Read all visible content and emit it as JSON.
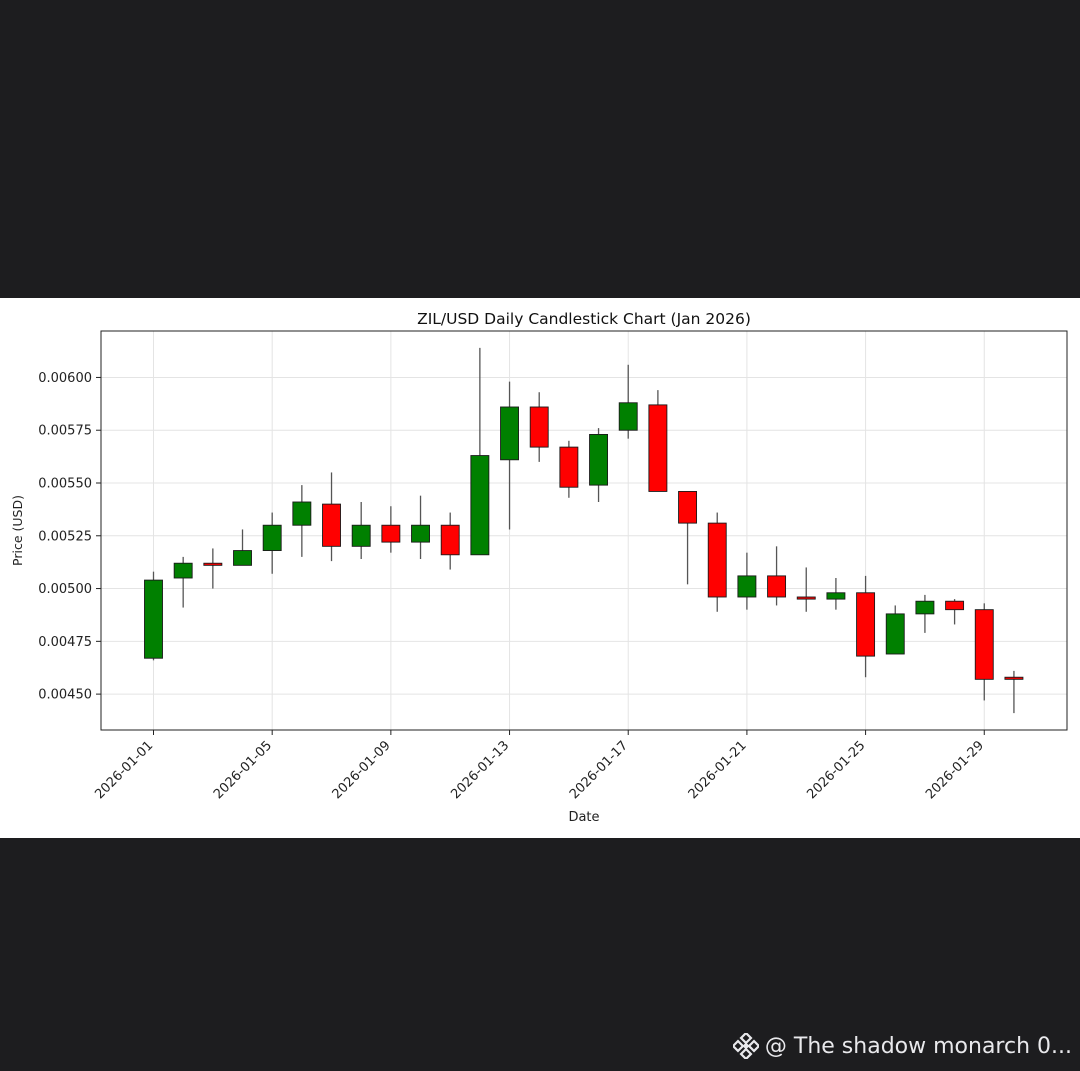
{
  "watermark": {
    "text": "@ The shadow monarch 0...",
    "icon": "binance-logo-icon"
  },
  "chart_data": {
    "type": "candlestick",
    "title": "ZIL/USD Daily Candlestick Chart (Jan 2026)",
    "xlabel": "Date",
    "ylabel": "Price (USD)",
    "ylim": [
      0.00433,
      0.00622
    ],
    "yticks": [
      "0.00450",
      "0.00475",
      "0.00500",
      "0.00525",
      "0.00550",
      "0.00575",
      "0.00600"
    ],
    "xticks": [
      "2026-01-01",
      "2026-01-05",
      "2026-01-09",
      "2026-01-13",
      "2026-01-17",
      "2026-01-21",
      "2026-01-25",
      "2026-01-29"
    ],
    "grid": true,
    "up_color": "#008000",
    "down_color": "#ff0000",
    "candles": [
      {
        "date": "2026-01-01",
        "open": 0.00467,
        "high": 0.00508,
        "low": 0.00466,
        "close": 0.00504
      },
      {
        "date": "2026-01-02",
        "open": 0.00505,
        "high": 0.00515,
        "low": 0.00491,
        "close": 0.00512
      },
      {
        "date": "2026-01-03",
        "open": 0.00512,
        "high": 0.00519,
        "low": 0.005,
        "close": 0.00511
      },
      {
        "date": "2026-01-04",
        "open": 0.00511,
        "high": 0.00528,
        "low": 0.00511,
        "close": 0.00518
      },
      {
        "date": "2026-01-05",
        "open": 0.00518,
        "high": 0.00536,
        "low": 0.00507,
        "close": 0.0053
      },
      {
        "date": "2026-01-06",
        "open": 0.0053,
        "high": 0.00549,
        "low": 0.00515,
        "close": 0.00541
      },
      {
        "date": "2026-01-07",
        "open": 0.0054,
        "high": 0.00555,
        "low": 0.00513,
        "close": 0.0052
      },
      {
        "date": "2026-01-08",
        "open": 0.0052,
        "high": 0.00541,
        "low": 0.00514,
        "close": 0.0053
      },
      {
        "date": "2026-01-09",
        "open": 0.0053,
        "high": 0.00539,
        "low": 0.00517,
        "close": 0.00522
      },
      {
        "date": "2026-01-10",
        "open": 0.00522,
        "high": 0.00544,
        "low": 0.00514,
        "close": 0.0053
      },
      {
        "date": "2026-01-11",
        "open": 0.0053,
        "high": 0.00536,
        "low": 0.00509,
        "close": 0.00516
      },
      {
        "date": "2026-01-12",
        "open": 0.00516,
        "high": 0.00614,
        "low": 0.00516,
        "close": 0.00563
      },
      {
        "date": "2026-01-13",
        "open": 0.00561,
        "high": 0.00598,
        "low": 0.00528,
        "close": 0.00586
      },
      {
        "date": "2026-01-14",
        "open": 0.00586,
        "high": 0.00593,
        "low": 0.0056,
        "close": 0.00567
      },
      {
        "date": "2026-01-15",
        "open": 0.00567,
        "high": 0.0057,
        "low": 0.00543,
        "close": 0.00548
      },
      {
        "date": "2026-01-16",
        "open": 0.00549,
        "high": 0.00576,
        "low": 0.00541,
        "close": 0.00573
      },
      {
        "date": "2026-01-17",
        "open": 0.00575,
        "high": 0.00606,
        "low": 0.00571,
        "close": 0.00588
      },
      {
        "date": "2026-01-18",
        "open": 0.00587,
        "high": 0.00594,
        "low": 0.00546,
        "close": 0.00546
      },
      {
        "date": "2026-01-19",
        "open": 0.00546,
        "high": 0.00546,
        "low": 0.00502,
        "close": 0.00531
      },
      {
        "date": "2026-01-20",
        "open": 0.00531,
        "high": 0.00536,
        "low": 0.00489,
        "close": 0.00496
      },
      {
        "date": "2026-01-21",
        "open": 0.00496,
        "high": 0.00517,
        "low": 0.0049,
        "close": 0.00506
      },
      {
        "date": "2026-01-22",
        "open": 0.00506,
        "high": 0.0052,
        "low": 0.00492,
        "close": 0.00496
      },
      {
        "date": "2026-01-23",
        "open": 0.00496,
        "high": 0.0051,
        "low": 0.00489,
        "close": 0.00495
      },
      {
        "date": "2026-01-24",
        "open": 0.00495,
        "high": 0.00505,
        "low": 0.0049,
        "close": 0.00498
      },
      {
        "date": "2026-01-25",
        "open": 0.00498,
        "high": 0.00506,
        "low": 0.00458,
        "close": 0.00468
      },
      {
        "date": "2026-01-26",
        "open": 0.00469,
        "high": 0.00492,
        "low": 0.00469,
        "close": 0.00488
      },
      {
        "date": "2026-01-27",
        "open": 0.00488,
        "high": 0.00497,
        "low": 0.00479,
        "close": 0.00494
      },
      {
        "date": "2026-01-28",
        "open": 0.00494,
        "high": 0.00495,
        "low": 0.00483,
        "close": 0.0049
      },
      {
        "date": "2026-01-29",
        "open": 0.0049,
        "high": 0.00493,
        "low": 0.00447,
        "close": 0.00457
      },
      {
        "date": "2026-01-30",
        "open": 0.00458,
        "high": 0.00461,
        "low": 0.00441,
        "close": 0.00457
      }
    ]
  }
}
